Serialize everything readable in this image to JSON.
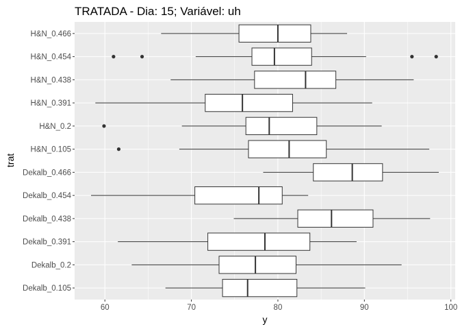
{
  "chart_data": {
    "type": "boxplot",
    "orientation": "horizontal",
    "title": "TRATADA - Dia: 15; Variável: uh",
    "xlabel": "y",
    "ylabel": "trat",
    "xlim": [
      56.5,
      100.5
    ],
    "x_ticks": [
      60,
      70,
      80,
      90,
      100
    ],
    "grid": true,
    "legend": "none",
    "colors": {
      "panel": "#ebebeb",
      "grid_major": "#ffffff",
      "box_fill": "#ffffff",
      "box_line": "#333333",
      "outlier": "#333333"
    },
    "categories": [
      "H&N_0.466",
      "H&N_0.454",
      "H&N_0.438",
      "H&N_0.391",
      "H&N_0.2",
      "H&N_0.105",
      "Dekalb_0.466",
      "Dekalb_0.454",
      "Dekalb_0.438",
      "Dekalb_0.391",
      "Dekalb_0.2",
      "Dekalb_0.105"
    ],
    "boxes": [
      {
        "category": "H&N_0.466",
        "whisker_low": 66.5,
        "q1": 75.5,
        "median": 80.0,
        "q3": 83.8,
        "whisker_high": 88.0,
        "outliers": []
      },
      {
        "category": "H&N_0.454",
        "whisker_low": 70.5,
        "q1": 77.0,
        "median": 79.6,
        "q3": 83.9,
        "whisker_high": 90.2,
        "outliers": [
          61.0,
          64.3,
          95.5,
          98.3
        ]
      },
      {
        "category": "H&N_0.438",
        "whisker_low": 67.6,
        "q1": 77.3,
        "median": 83.2,
        "q3": 86.7,
        "whisker_high": 95.7,
        "outliers": []
      },
      {
        "category": "H&N_0.391",
        "whisker_low": 58.9,
        "q1": 71.6,
        "median": 75.9,
        "q3": 81.7,
        "whisker_high": 90.9,
        "outliers": []
      },
      {
        "category": "H&N_0.2",
        "whisker_low": 68.9,
        "q1": 76.3,
        "median": 79.0,
        "q3": 84.5,
        "whisker_high": 92.0,
        "outliers": [
          59.9
        ]
      },
      {
        "category": "H&N_0.105",
        "whisker_low": 68.6,
        "q1": 76.6,
        "median": 81.3,
        "q3": 85.6,
        "whisker_high": 97.5,
        "outliers": [
          61.6
        ]
      },
      {
        "category": "Dekalb_0.466",
        "whisker_low": 78.3,
        "q1": 84.1,
        "median": 88.6,
        "q3": 92.1,
        "whisker_high": 98.6,
        "outliers": []
      },
      {
        "category": "Dekalb_0.454",
        "whisker_low": 58.4,
        "q1": 70.4,
        "median": 77.8,
        "q3": 80.5,
        "whisker_high": 83.5,
        "outliers": []
      },
      {
        "category": "Dekalb_0.438",
        "whisker_low": 74.9,
        "q1": 82.3,
        "median": 86.2,
        "q3": 91.0,
        "whisker_high": 97.6,
        "outliers": []
      },
      {
        "category": "Dekalb_0.391",
        "whisker_low": 61.5,
        "q1": 71.9,
        "median": 78.5,
        "q3": 83.7,
        "whisker_high": 89.1,
        "outliers": []
      },
      {
        "category": "Dekalb_0.2",
        "whisker_low": 63.1,
        "q1": 73.2,
        "median": 77.4,
        "q3": 82.1,
        "whisker_high": 94.3,
        "outliers": []
      },
      {
        "category": "Dekalb_0.105",
        "whisker_low": 67.0,
        "q1": 73.6,
        "median": 76.5,
        "q3": 82.2,
        "whisker_high": 90.1,
        "outliers": []
      }
    ]
  }
}
